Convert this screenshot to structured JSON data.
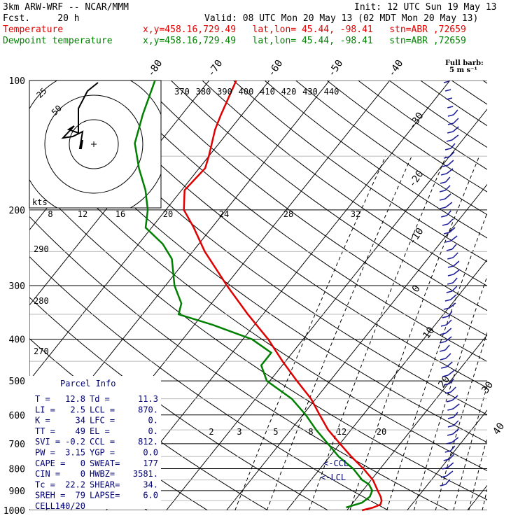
{
  "header": {
    "model": "3km ARW-WRF -- NCAR/MMM",
    "init": "Init: 12 UTC Sun 19 May 13",
    "fcst": "Fcst.     20 h",
    "valid": "Valid: 08 UTC Mon 20 May 13 (02 MDT Mon 20 May 13)"
  },
  "legend": {
    "temperature": {
      "label": "Temperature",
      "info": "x,y=458.16,729.49   lat,lon= 45.44, -98.41   stn=ABR ,72659",
      "color": "#e00000"
    },
    "dewpoint": {
      "label": "Dewpoint temperature",
      "info": "x,y=458.16,729.49   lat,lon= 45.44, -98.41   stn=ABR ,72659",
      "color": "#008000"
    }
  },
  "barb_note": {
    "line1": "Full barb:",
    "line2": "5 m s⁻¹"
  },
  "hodograph": {
    "units": "kts",
    "ring_labels": [
      "25",
      "50"
    ]
  },
  "parcel_info": {
    "title": "Parcel Info",
    "rows": [
      [
        "T  =",
        "12.8",
        "Td =",
        "11.3"
      ],
      [
        "LI =",
        "2.5",
        "LCL =",
        "870."
      ],
      [
        "K  =",
        "34",
        "LFC =",
        "0."
      ],
      [
        "TT =",
        "49",
        "EL  =",
        "0."
      ],
      [
        "SVI =",
        "-0.2",
        "CCL =",
        "812."
      ],
      [
        "PW =",
        "3.15",
        "YGP =",
        "0.0"
      ],
      [
        "CAPE =",
        "0",
        "SWEAT=",
        "177"
      ],
      [
        "CIN =",
        "0",
        "HWBZ=",
        "3581."
      ],
      [
        "Tc =",
        "22.2",
        "SHEAR=",
        "34."
      ],
      [
        "SREH =",
        "79",
        "LAPSE=",
        "6.0"
      ],
      [
        "CELL =",
        "140/20",
        "",
        ""
      ]
    ]
  },
  "annotations": {
    "ccl": "<-CCL",
    "lcl": "<-LCL"
  },
  "chart_data": {
    "type": "line",
    "chart_kind": "Skew-T log-P sounding",
    "y_axis": {
      "scale": "log",
      "reversed": true,
      "range": [
        1000,
        100
      ],
      "tick_labels": [
        "100",
        "200",
        "300",
        "400",
        "500",
        "600",
        "700",
        "800",
        "900",
        "1000"
      ]
    },
    "isotherm_labels": [
      "-80",
      "-70",
      "-60",
      "-50",
      "-40",
      "-30",
      "-20",
      "-10",
      "0",
      "10",
      "20",
      "30",
      "40"
    ],
    "theta_e_labels": [
      "370",
      "380",
      "390",
      "400",
      "410",
      "420",
      "430",
      "440"
    ],
    "dry_adiabat_labels": [
      "290",
      "280",
      "270"
    ],
    "mixing_ratio_upper_labels": [
      "8",
      "12",
      "16",
      "20",
      "24",
      "28",
      "32"
    ],
    "mixing_ratio_lower_labels": [
      "2",
      "3",
      "5",
      "8",
      "12",
      "20"
    ],
    "series": [
      {
        "name": "Temperature",
        "color": "#e00000",
        "points": [
          [
            1000,
            12.5
          ],
          [
            985,
            14.0
          ],
          [
            970,
            14.8
          ],
          [
            950,
            14.5
          ],
          [
            930,
            13.8
          ],
          [
            900,
            12.5
          ],
          [
            870,
            11.2
          ],
          [
            850,
            10.3
          ],
          [
            800,
            7.2
          ],
          [
            750,
            3.6
          ],
          [
            700,
            0.0
          ],
          [
            650,
            -3.8
          ],
          [
            600,
            -7.2
          ],
          [
            550,
            -10.8
          ],
          [
            500,
            -15.5
          ],
          [
            450,
            -20.5
          ],
          [
            400,
            -25.8
          ],
          [
            350,
            -32.5
          ],
          [
            300,
            -39.8
          ],
          [
            250,
            -48.0
          ],
          [
            220,
            -53.0
          ],
          [
            200,
            -57.0
          ],
          [
            180,
            -59.5
          ],
          [
            160,
            -59.0
          ],
          [
            150,
            -60.0
          ],
          [
            130,
            -62.5
          ],
          [
            120,
            -63.5
          ],
          [
            100,
            -65.5
          ]
        ]
      },
      {
        "name": "Dewpoint temperature",
        "color": "#008000",
        "points": [
          [
            985,
            9.5
          ],
          [
            960,
            11.5
          ],
          [
            930,
            12.0
          ],
          [
            900,
            11.6
          ],
          [
            870,
            10.2
          ],
          [
            850,
            8.5
          ],
          [
            800,
            5.5
          ],
          [
            750,
            1.5
          ],
          [
            700,
            -2.0
          ],
          [
            650,
            -5.8
          ],
          [
            600,
            -9.5
          ],
          [
            550,
            -14.0
          ],
          [
            500,
            -20.5
          ],
          [
            460,
            -23.5
          ],
          [
            430,
            -23.5
          ],
          [
            400,
            -28.5
          ],
          [
            370,
            -37.0
          ],
          [
            350,
            -44.0
          ],
          [
            330,
            -45.0
          ],
          [
            300,
            -48.5
          ],
          [
            260,
            -52.5
          ],
          [
            240,
            -56.0
          ],
          [
            220,
            -61.0
          ],
          [
            200,
            -63.0
          ],
          [
            180,
            -66.0
          ],
          [
            160,
            -70.0
          ],
          [
            140,
            -74.0
          ],
          [
            120,
            -76.5
          ],
          [
            100,
            -79.0
          ]
        ]
      }
    ]
  }
}
